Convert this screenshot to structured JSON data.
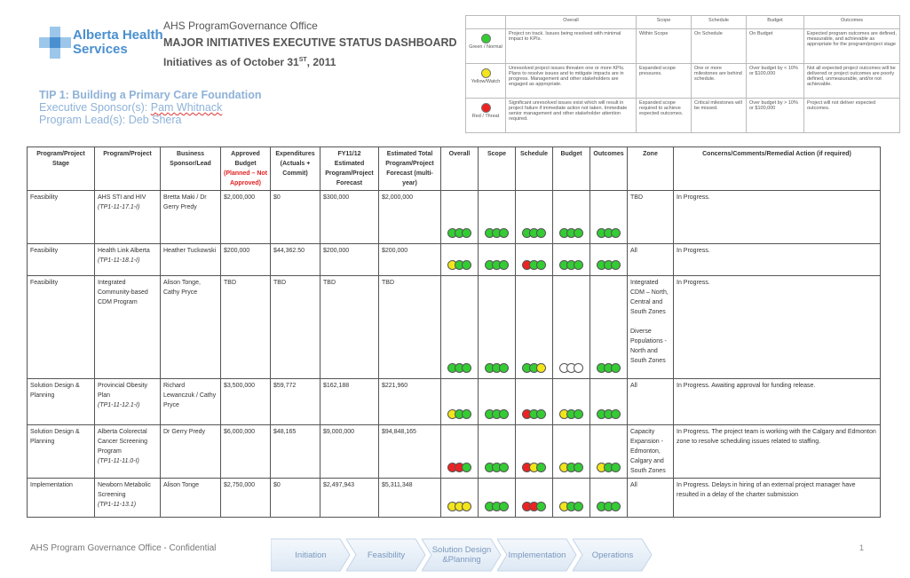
{
  "header": {
    "office": "AHS ProgramGovernance Office",
    "title": "MAJOR INITIATIVES EXECUTIVE STATUS DASHBOARD",
    "date_prefix": "Initiatives as of October 31",
    "date_sup": "ST",
    "date_suffix": ", 2011"
  },
  "logo": {
    "line1": "Alberta Health",
    "line2": "Services",
    "color": "#4a8fd0"
  },
  "tip": {
    "title": "TIP 1: Building a Primary Care Foundation",
    "sponsor_label": "Executive Sponsor(s): ",
    "sponsor_name": "Pam Whitnack",
    "lead_label": "Program Lead(s): ",
    "lead_name": "Deb Shera"
  },
  "legend": {
    "headers": [
      "",
      "Overall",
      "Scope",
      "Schedule",
      "Budget",
      "Outcomes"
    ],
    "rows": [
      {
        "color": "#33cc33",
        "status": "Green / Normal",
        "overall": "Project on track. Issues being resolved with minimal impact to KPIs.",
        "scope": "Within Scope",
        "schedule": "On Schedule",
        "budget": "On Budget",
        "outcomes": "Expected program outcomes are defined, measurable, and achievable as appropriate for the program/project stage"
      },
      {
        "color": "#f2e51a",
        "status": "Yellow/Watch",
        "overall": "Unresolved project issues threaten one or more KPIs. Plans to resolve issues and to mitigate impacts are in progress. Management and other stakeholders are engaged as appropriate.",
        "scope": "Expanded scope pressures.",
        "schedule": "One or more milestones are behind schedule.",
        "budget": "Over budget by < 10% or $100,000",
        "outcomes": "Not all expected project outcomes will be delivered or project outcomes are poorly defined, unmeasurable, and/or not achievable."
      },
      {
        "color": "#ee2222",
        "status": "Red / Threat",
        "overall": "Significant unresolved issues exist which will result in project failure if immediate action not taken. Immediate senior management and other stakeholder attention required.",
        "scope": "Expanded scope required to achieve expected outcomes.",
        "schedule": "Critical milestones will be missed.",
        "budget": "Over budget by > 10% or $100,000",
        "outcomes": "Project will not deliver expected outcomes."
      }
    ]
  },
  "table": {
    "headers": {
      "stage": "Program/Project Stage",
      "project": "Program/Project",
      "sponsor": "Business Sponsor/Lead",
      "budget": "Approved Budget",
      "budget_note": "(Planned – Not Approved)",
      "expend": "Expenditures (Actuals + Commit)",
      "forecast": "FY11/12 Estimated Program/Project Forecast",
      "total": "Estimated Total Program/Project Forecast (multi-year)",
      "overall": "Overall",
      "scope": "Scope",
      "schedule": "Schedule",
      "budget_col": "Budget",
      "outcomes": "Outcomes",
      "zone": "Zone",
      "concerns": "Concerns/Comments/Remedial Action (if required)"
    },
    "rows": [
      {
        "stage": "Feasibility",
        "project": "AHS STI and HIV",
        "code": "(TP1-11-17.1-I)",
        "sponsor": "Bretta Maki / Dr Gerry Predy",
        "budget": "$2,000,000",
        "expend": "$0",
        "forecast": "$300,000",
        "total": "$2,000,000",
        "overall": [
          "#33cc33",
          "#33cc33",
          "#33cc33"
        ],
        "scope": [
          "#33cc33",
          "#33cc33",
          "#33cc33"
        ],
        "schedule": [
          "#33cc33",
          "#33cc33",
          "#33cc33"
        ],
        "budget_dots": [
          "#33cc33",
          "#33cc33",
          "#33cc33"
        ],
        "outcomes": [
          "#33cc33",
          "#33cc33",
          "#33cc33"
        ],
        "zone": "TBD",
        "comment": "In Progress.",
        "h": 60
      },
      {
        "stage": "Feasibility",
        "project": "Health Link Alberta",
        "code": "(TP1-11-18.1-I)",
        "sponsor": "Heather Tuckowski",
        "budget": "$200,000",
        "expend": "$44,362.50",
        "forecast": "$200,000",
        "total": "$200,000",
        "overall": [
          "#f2e51a",
          "#33cc33",
          "#33cc33"
        ],
        "scope": [
          "#33cc33",
          "#33cc33",
          "#33cc33"
        ],
        "schedule": [
          "#ee2222",
          "#33cc33",
          "#33cc33"
        ],
        "budget_dots": [
          "#33cc33",
          "#33cc33",
          "#33cc33"
        ],
        "outcomes": [
          "#33cc33",
          "#33cc33",
          "#33cc33"
        ],
        "zone": "All",
        "comment": "In Progress.",
        "h": 36
      },
      {
        "stage": "Feasibility",
        "project": "Integrated Community-based CDM Program",
        "code": "",
        "sponsor": "Alison Tonge, Cathy Pryce",
        "budget": "TBD",
        "expend": "TBD",
        "forecast": "TBD",
        "total": "TBD",
        "overall": [
          "#33cc33",
          "#33cc33",
          "#33cc33"
        ],
        "scope": [
          "#33cc33",
          "#33cc33",
          "#33cc33"
        ],
        "schedule": [
          "#33cc33",
          "#33cc33",
          "#f2e51a"
        ],
        "budget_dots": [
          "#ffffff",
          "#ffffff",
          "#ffffff"
        ],
        "outcomes": [
          "#33cc33",
          "#33cc33",
          "#33cc33"
        ],
        "zone": "Integrated CDM – North, Central and South Zones\n\nDiverse Populations - North and South Zones",
        "comment": "In Progress.",
        "h": 116
      },
      {
        "stage": "Solution Design & Planning",
        "project": "Provincial Obesity Plan",
        "code": "(TP1-11-12.1-I)",
        "sponsor": "Richard Lewanczuk / Cathy Pryce",
        "budget": "$3,500,000",
        "expend": "$59,772",
        "forecast": "$162,188",
        "total": "$221,960",
        "overall": [
          "#f2e51a",
          "#33cc33",
          "#33cc33"
        ],
        "scope": [
          "#33cc33",
          "#33cc33",
          "#33cc33"
        ],
        "schedule": [
          "#ee2222",
          "#33cc33",
          "#33cc33"
        ],
        "budget_dots": [
          "#f2e51a",
          "#33cc33",
          "#33cc33"
        ],
        "outcomes": [
          "#33cc33",
          "#33cc33",
          "#33cc33"
        ],
        "zone": "All",
        "comment": "In Progress. Awaiting approval for funding release.",
        "h": 52
      },
      {
        "stage": "Solution Design & Planning",
        "project": "Alberta Colorectal Cancer Screening Program",
        "code": "(TP1-11-11.0-I)",
        "sponsor": "Dr Gerry Predy",
        "budget": "$6,000,000",
        "expend": "$48,165",
        "forecast": "$9,000,000",
        "total": "$94,848,165",
        "overall": [
          "#ee2222",
          "#ee2222",
          "#33cc33"
        ],
        "scope": [
          "#33cc33",
          "#33cc33",
          "#33cc33"
        ],
        "schedule": [
          "#ee2222",
          "#f2e51a",
          "#33cc33"
        ],
        "budget_dots": [
          "#f2e51a",
          "#33cc33",
          "#33cc33"
        ],
        "outcomes": [
          "#f2e51a",
          "#33cc33",
          "#33cc33"
        ],
        "zone": "Capacity Expansion - Edmonton, Calgary and South Zones",
        "comment": "In Progress. The project team is working with the Calgary and Edmonton zone to resolve scheduling issues related to staffing.",
        "h": 52
      },
      {
        "stage": "Implementation",
        "project": "Newborn Metabolic Screening",
        "code": "(TP1-11-13.1)",
        "sponsor": "Alison Tonge",
        "budget": "$2,750,000",
        "expend": "$0",
        "forecast": "$2,497,943",
        "total": "$5,311,348",
        "overall": [
          "#f2e51a",
          "#f2e51a",
          "#f2e51a"
        ],
        "scope": [
          "#33cc33",
          "#33cc33",
          "#33cc33"
        ],
        "schedule": [
          "#ee2222",
          "#ee2222",
          "#33cc33"
        ],
        "budget_dots": [
          "#f2e51a",
          "#33cc33",
          "#33cc33"
        ],
        "outcomes": [
          "#33cc33",
          "#33cc33",
          "#33cc33"
        ],
        "zone": "All",
        "comment": "In Progress. Delays in hiring of an external project manager have resulted in a delay of the charter submission",
        "h": 44
      }
    ]
  },
  "footer": {
    "label": "AHS Program Governance Office - Confidential",
    "page": "1",
    "stages": [
      "Initiation",
      "Feasibility",
      "Solution Design\n&Planning",
      "Implementation",
      "Operations"
    ]
  }
}
